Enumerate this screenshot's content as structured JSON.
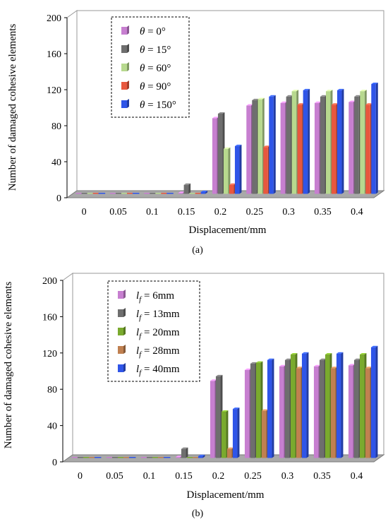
{
  "chart_data": [
    {
      "type": "bar",
      "panel_label": "(a)",
      "xlabel": "Displacement/mm",
      "ylabel": "Number of damaged cohesive elements",
      "ylim": [
        0,
        200
      ],
      "yticks": [
        "0",
        "40",
        "80",
        "120",
        "160",
        "200"
      ],
      "categories": [
        "0",
        "0.05",
        "0.1",
        "0.15",
        "0.2",
        "0.25",
        "0.3",
        "0.35",
        "0.4"
      ],
      "grid": false,
      "legend_position": "top-left",
      "series": [
        {
          "name": "θ = 0°",
          "color": "#c77fd0",
          "values": [
            0,
            0,
            0,
            1,
            84,
            98,
            101,
            101,
            102
          ]
        },
        {
          "name": "θ = 15°",
          "color": "#6e6e6e",
          "values": [
            0,
            0,
            0,
            10,
            89,
            104,
            108,
            108,
            108
          ]
        },
        {
          "name": "θ = 60°",
          "color": "#b7d98e",
          "values": [
            0,
            0,
            0,
            0,
            50,
            105,
            114,
            114,
            114
          ]
        },
        {
          "name": "θ = 90°",
          "color": "#e8573e",
          "values": [
            0,
            0,
            0,
            0,
            10,
            52,
            99,
            99,
            99
          ]
        },
        {
          "name": "θ = 150°",
          "color": "#2f55e8",
          "values": [
            0,
            0,
            0,
            2,
            53,
            108,
            115,
            115,
            122
          ]
        }
      ]
    },
    {
      "type": "bar",
      "panel_label": "(b)",
      "xlabel": "Displacement/mm",
      "ylabel": "Number of damaged cohesive elements",
      "ylim": [
        0,
        200
      ],
      "yticks": [
        "0",
        "40",
        "80",
        "120",
        "160",
        "200"
      ],
      "categories": [
        "0",
        "0.05",
        "0.1",
        "0.15",
        "0.2",
        "0.25",
        "0.3",
        "0.35",
        "0.4"
      ],
      "grid": false,
      "legend_position": "top-left",
      "series": [
        {
          "name": "lf = 6mm",
          "color": "#c77fd0",
          "values": [
            0,
            0,
            0,
            1,
            85,
            97,
            101,
            101,
            102
          ]
        },
        {
          "name": "lf = 13mm",
          "color": "#6e6e6e",
          "values": [
            0,
            0,
            0,
            10,
            90,
            104,
            108,
            108,
            108
          ]
        },
        {
          "name": "lf = 20mm",
          "color": "#7aaa2e",
          "values": [
            0,
            0,
            0,
            0,
            51,
            105,
            114,
            114,
            114
          ]
        },
        {
          "name": "lf = 28mm",
          "color": "#c08050",
          "values": [
            0,
            0,
            0,
            0,
            10,
            52,
            99,
            99,
            99
          ]
        },
        {
          "name": "lf = 40mm",
          "color": "#2f55e8",
          "values": [
            0,
            0,
            0,
            2,
            54,
            108,
            115,
            115,
            122
          ]
        }
      ]
    }
  ]
}
